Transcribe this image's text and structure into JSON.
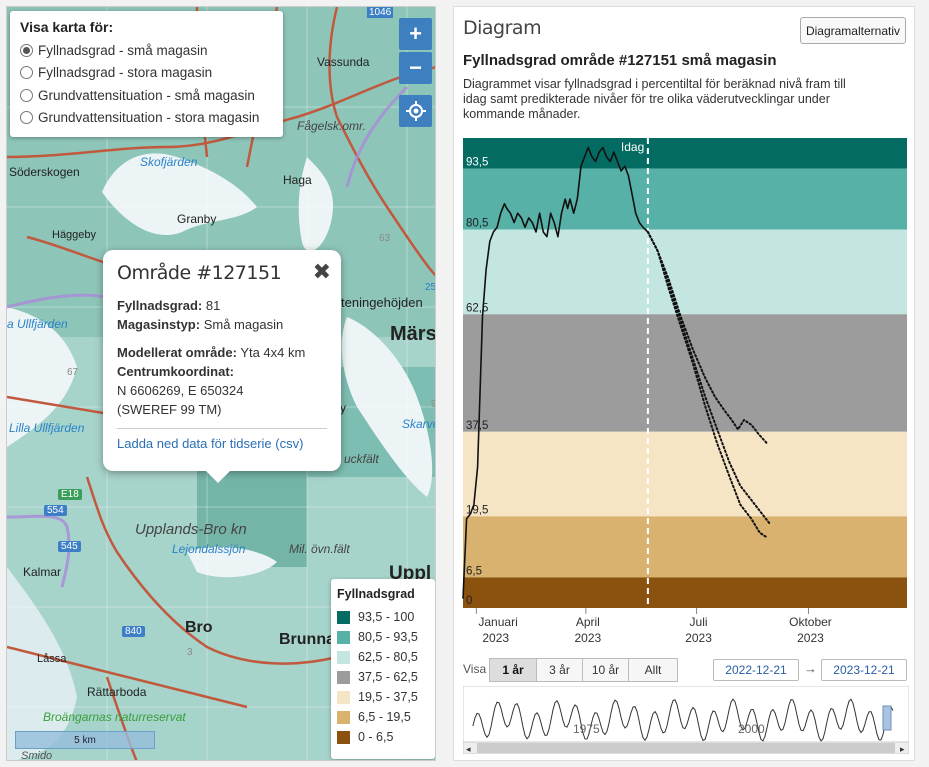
{
  "map": {
    "layer_title": "Visa karta för:",
    "layers": [
      {
        "label": "Fyllnadsgrad - små magasin",
        "selected": true
      },
      {
        "label": "Fyllnadsgrad - stora magasin",
        "selected": false
      },
      {
        "label": "Grundvattensituation - små magasin",
        "selected": false
      },
      {
        "label": "Grundvattensituation - stora magasin",
        "selected": false
      }
    ],
    "zoom_in": "+",
    "zoom_out": "−",
    "places": {
      "vassunda": "Vassunda",
      "fagelsk": "Fågelsk.omr.",
      "soderskogen": "Söderskogen",
      "skofjarden": "Skofjärden",
      "haga": "Haga",
      "granby": "Granby",
      "haggeby": "Häggeby",
      "ullfjarden": "a Ullfjärden",
      "tenings": "teningehöjden",
      "mars": "Märs",
      "lilla_ullfjarden": "Lilla Ullfjärden",
      "skarve": "Skarve",
      "uckfalt": "uckfält",
      "y": "y",
      "upplands_bro": "Upplands-Bro kn",
      "lejondalssjon": "Lejondalssjön",
      "mil_ovn": "Mil. övn.fält",
      "kalmar": "Kalmar",
      "bro": "Bro",
      "brunna": "Brunna",
      "lassa": "Låssa",
      "rattarboda": "Rättarboda",
      "broangarnas": "Broängarnas naturreservat",
      "smido": "Smido",
      "uppl": "Uppl",
      "num_67": "67",
      "num_63": "63",
      "num_25": "25",
      "num_9": "9",
      "num_3": "3",
      "num_1046": "1046"
    },
    "shields": {
      "e18": "E18",
      "r554": "554",
      "r545": "545",
      "r840": "840"
    },
    "scalebar": "5 km",
    "popup": {
      "title": "Område #127151",
      "fyllnadsgrad_label": "Fyllnadsgrad:",
      "fyllnadsgrad_value": "81",
      "magasin_label": "Magasinstyp:",
      "magasin_value": "Små magasin",
      "modell_label": "Modellerat område:",
      "modell_value": "Yta 4x4 km",
      "centrum_label": "Centrumkoordinat:",
      "coord": "N 6606269, E 650324",
      "ref": "(SWEREF 99 TM)",
      "download": "Ladda ned data för tidserie (csv)"
    },
    "legend": {
      "title": "Fyllnadsgrad",
      "items": [
        {
          "label": "93,5 - 100",
          "color": "#046b62"
        },
        {
          "label": "80,5 - 93,5",
          "color": "#58b1a7"
        },
        {
          "label": "62,5 - 80,5",
          "color": "#c4e6e0"
        },
        {
          "label": "37,5 - 62,5",
          "color": "#9c9c9c"
        },
        {
          "label": "19,5 - 37,5",
          "color": "#f6e5c5"
        },
        {
          "label": "6,5 - 19,5",
          "color": "#d8b26e"
        },
        {
          "label": "0 - 6,5",
          "color": "#8a520e"
        }
      ]
    }
  },
  "panel": {
    "heading": "Diagram",
    "options_button": "Diagramalternativ",
    "chart_title": "Fyllnadsgrad område #127151 små magasin",
    "description": "Diagrammet visar fyllnadsgrad i percentiltal för beräknad nivå fram till idag samt predikterade nivåer för tre olika väderutvecklingar under kommande månader.",
    "visa_label": "Visa",
    "range_buttons": [
      "1 år",
      "3 år",
      "10 år",
      "Allt"
    ],
    "active_range": "1 år",
    "date_from": "2022-12-21",
    "date_to": "2023-12-21",
    "date_arrow": "→",
    "navigator_labels": [
      "1975",
      "2000"
    ]
  },
  "chart_data": {
    "type": "line",
    "title": "Fyllnadsgrad område #127151 små magasin",
    "ylim": [
      0,
      100
    ],
    "bands": [
      {
        "from": 93.5,
        "to": 100,
        "color": "#046b62"
      },
      {
        "from": 80.5,
        "to": 93.5,
        "color": "#58b1a7"
      },
      {
        "from": 62.5,
        "to": 80.5,
        "color": "#c4e6e0"
      },
      {
        "from": 37.5,
        "to": 62.5,
        "color": "#9c9c9c"
      },
      {
        "from": 19.5,
        "to": 37.5,
        "color": "#f6e5c5"
      },
      {
        "from": 6.5,
        "to": 19.5,
        "color": "#d8b26e"
      },
      {
        "from": 0,
        "to": 6.5,
        "color": "#8a520e"
      }
    ],
    "y_tick_labels": [
      "93,5",
      "80,5",
      "62,5",
      "37,5",
      "19,5",
      "6,5",
      "0"
    ],
    "y_tick_values": [
      93.5,
      80.5,
      62.5,
      37.5,
      19.5,
      6.5,
      0
    ],
    "x_tick_labels": [
      {
        "month": "Januari",
        "year": "2023",
        "date": "2023-01-01"
      },
      {
        "month": "April",
        "year": "2023",
        "date": "2023-04-01"
      },
      {
        "month": "Juli",
        "year": "2023",
        "date": "2023-07-01"
      },
      {
        "month": "Oktober",
        "year": "2023",
        "date": "2023-10-01"
      }
    ],
    "today_label": "Idag",
    "today_date": "2023-05-22",
    "xlim": [
      "2022-12-21",
      "2023-12-21"
    ],
    "series": [
      {
        "dashed": false,
        "points": [
          [
            "2022-12-21",
            2
          ],
          [
            "2022-12-24",
            19
          ],
          [
            "2022-12-27",
            20
          ],
          [
            "2022-12-30",
            22
          ],
          [
            "2023-01-02",
            30
          ],
          [
            "2023-01-06",
            62
          ],
          [
            "2023-01-09",
            72
          ],
          [
            "2023-01-12",
            78
          ],
          [
            "2023-01-15",
            80
          ],
          [
            "2023-01-18",
            81
          ],
          [
            "2023-01-21",
            84
          ],
          [
            "2023-01-24",
            86
          ],
          [
            "2023-01-26",
            85
          ],
          [
            "2023-01-29",
            84
          ],
          [
            "2023-02-01",
            82
          ],
          [
            "2023-02-04",
            84
          ],
          [
            "2023-02-07",
            83
          ],
          [
            "2023-02-10",
            81
          ],
          [
            "2023-02-13",
            83
          ],
          [
            "2023-02-16",
            82
          ],
          [
            "2023-02-19",
            80
          ],
          [
            "2023-02-22",
            84
          ],
          [
            "2023-02-25",
            80
          ],
          [
            "2023-02-28",
            79
          ],
          [
            "2023-03-03",
            84
          ],
          [
            "2023-03-06",
            82
          ],
          [
            "2023-03-09",
            79
          ],
          [
            "2023-03-12",
            84
          ],
          [
            "2023-03-15",
            87
          ],
          [
            "2023-03-17",
            85
          ],
          [
            "2023-03-19",
            87
          ],
          [
            "2023-03-22",
            84
          ],
          [
            "2023-03-25",
            87
          ],
          [
            "2023-03-28",
            94
          ],
          [
            "2023-03-31",
            96
          ],
          [
            "2023-04-03",
            98
          ],
          [
            "2023-04-06",
            96
          ],
          [
            "2023-04-09",
            95
          ],
          [
            "2023-04-12",
            97
          ],
          [
            "2023-04-15",
            98
          ],
          [
            "2023-04-18",
            96
          ],
          [
            "2023-04-21",
            95
          ],
          [
            "2023-04-24",
            97
          ],
          [
            "2023-04-27",
            95
          ],
          [
            "2023-04-30",
            93
          ],
          [
            "2023-05-03",
            94
          ],
          [
            "2023-05-06",
            92
          ],
          [
            "2023-05-09",
            88
          ],
          [
            "2023-05-12",
            84
          ],
          [
            "2023-05-15",
            82
          ],
          [
            "2023-05-18",
            81
          ],
          [
            "2023-05-22",
            80
          ]
        ]
      },
      {
        "dashed": true,
        "points": [
          [
            "2023-05-22",
            80
          ],
          [
            "2023-05-30",
            76
          ],
          [
            "2023-06-08",
            70
          ],
          [
            "2023-06-18",
            62
          ],
          [
            "2023-06-28",
            55
          ],
          [
            "2023-07-08",
            49
          ],
          [
            "2023-07-16",
            45
          ],
          [
            "2023-07-24",
            42
          ],
          [
            "2023-07-30",
            40
          ],
          [
            "2023-08-04",
            38
          ],
          [
            "2023-08-09",
            40
          ],
          [
            "2023-08-15",
            39
          ],
          [
            "2023-08-21",
            37
          ],
          [
            "2023-08-28",
            35
          ]
        ]
      },
      {
        "dashed": true,
        "points": [
          [
            "2023-05-22",
            80
          ],
          [
            "2023-05-30",
            76
          ],
          [
            "2023-06-08",
            69
          ],
          [
            "2023-06-18",
            61
          ],
          [
            "2023-06-28",
            53
          ],
          [
            "2023-07-08",
            45
          ],
          [
            "2023-07-18",
            38
          ],
          [
            "2023-07-28",
            31
          ],
          [
            "2023-08-06",
            26
          ],
          [
            "2023-08-15",
            23
          ],
          [
            "2023-08-24",
            20
          ],
          [
            "2023-08-30",
            18
          ]
        ]
      },
      {
        "dashed": true,
        "points": [
          [
            "2023-05-22",
            80
          ],
          [
            "2023-05-30",
            76
          ],
          [
            "2023-06-08",
            68
          ],
          [
            "2023-06-18",
            60
          ],
          [
            "2023-06-28",
            52
          ],
          [
            "2023-07-08",
            43
          ],
          [
            "2023-07-18",
            35
          ],
          [
            "2023-07-28",
            28
          ],
          [
            "2023-08-06",
            22
          ],
          [
            "2023-08-15",
            19
          ],
          [
            "2023-08-22",
            16
          ],
          [
            "2023-08-28",
            15
          ]
        ]
      }
    ]
  }
}
